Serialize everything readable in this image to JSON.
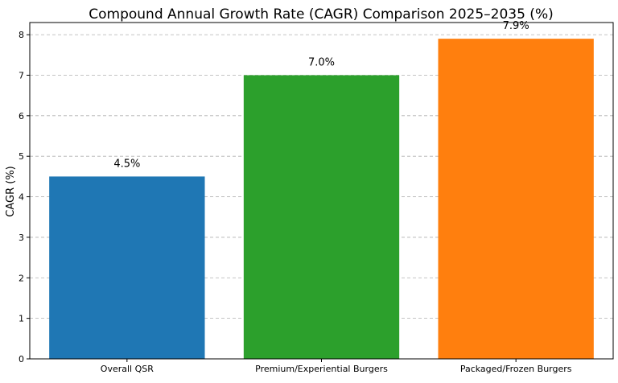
{
  "chart_data": {
    "type": "bar",
    "title": "Compound Annual Growth Rate (CAGR) Comparison 2025–2035 (%)",
    "xlabel": "",
    "ylabel": "CAGR (%)",
    "categories": [
      "Overall QSR",
      "Premium/Experiential Burgers",
      "Packaged/Frozen Burgers"
    ],
    "values": [
      4.5,
      7.0,
      7.9
    ],
    "data_labels": [
      "4.5%",
      "7.0%",
      "7.9%"
    ],
    "colors": [
      "#1f77b4",
      "#2ca02c",
      "#ff7f0e"
    ],
    "ylim": [
      0,
      8.3
    ],
    "yticks": [
      0,
      1,
      2,
      3,
      4,
      5,
      6,
      7,
      8
    ],
    "grid": "y-dashed",
    "legend": "none"
  }
}
